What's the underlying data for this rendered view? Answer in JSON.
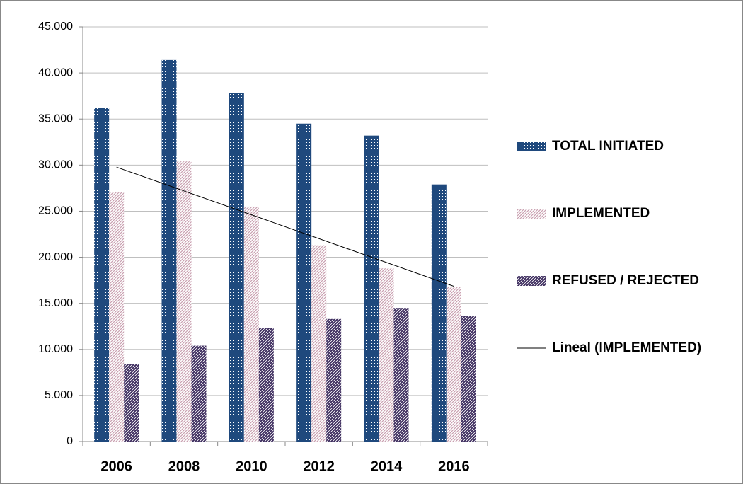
{
  "chart_data": {
    "type": "bar",
    "categories": [
      "2006",
      "2008",
      "2010",
      "2012",
      "2014",
      "2016"
    ],
    "series": [
      {
        "name": "TOTAL INITIATED",
        "color": "#1f497d",
        "pattern": "dots",
        "values": [
          36200,
          41400,
          37800,
          34500,
          33200,
          27900
        ]
      },
      {
        "name": "IMPLEMENTED",
        "color": "#c9a0b0",
        "pattern": "hatch-light",
        "values": [
          27100,
          30400,
          25500,
          21300,
          18800,
          16800
        ],
        "trendline": {
          "type": "linear",
          "name": "Lineal (IMPLEMENTED)",
          "color": "#000000"
        }
      },
      {
        "name": "REFUSED / REJECTED",
        "color": "#3b2a5c",
        "pattern": "hatch-dense",
        "values": [
          8400,
          10400,
          12300,
          13300,
          14500,
          13600
        ]
      }
    ],
    "ylim": [
      0,
      45000
    ],
    "yticks": [
      0,
      {
        "value": 5000,
        "label": "5.000"
      },
      {
        "value": 10000,
        "label": "10.000"
      },
      {
        "value": 15000,
        "label": "15.000"
      },
      {
        "value": 20000,
        "label": "20.000"
      },
      {
        "value": 25000,
        "label": "25.000"
      },
      {
        "value": 30000,
        "label": "30.000"
      },
      {
        "value": 35000,
        "label": "35.000"
      },
      {
        "value": 40000,
        "label": "40.000"
      },
      {
        "value": 45000,
        "label": "45.000"
      }
    ],
    "grid": true,
    "legend": "right"
  }
}
